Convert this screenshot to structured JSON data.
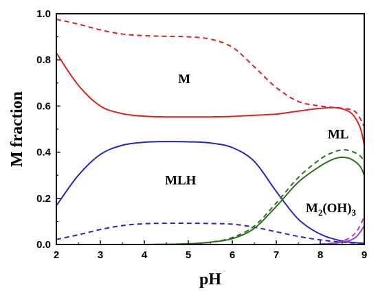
{
  "chart_data": {
    "type": "line",
    "xlabel": "pH",
    "ylabel": "M fraction",
    "xlim": [
      2,
      9
    ],
    "ylim": [
      0,
      1.0
    ],
    "xticks": [
      "2",
      "3",
      "4",
      "5",
      "6",
      "7",
      "8",
      "9"
    ],
    "yticks": [
      "0.0",
      "0.2",
      "0.4",
      "0.6",
      "0.8",
      "1.0"
    ],
    "grid": false,
    "legend": "none",
    "annotations": [
      {
        "text": "M",
        "x": 4.77,
        "y": 0.7
      },
      {
        "text": "MLH",
        "x": 4.47,
        "y": 0.26
      },
      {
        "text": "ML",
        "x": 8.17,
        "y": 0.46
      },
      {
        "main": "M",
        "sub": "2",
        "rest": "(OH)",
        "sub2": "3",
        "x": 7.67,
        "y": 0.14
      }
    ],
    "colors": {
      "M": "#e02020",
      "MLH": "#2424c8",
      "ML": "#2f6e1e",
      "M2OH3": "#a040d0"
    },
    "series": [
      {
        "key": "M_solid",
        "style": "solid",
        "color": "#e02020",
        "x": [
          2.0,
          2.5,
          3.0,
          3.5,
          4.0,
          4.5,
          5.0,
          5.5,
          6.0,
          6.5,
          7.0,
          7.5,
          8.0,
          8.4,
          8.7,
          8.9,
          9.0
        ],
        "y": [
          0.83,
          0.69,
          0.6,
          0.567,
          0.556,
          0.553,
          0.553,
          0.553,
          0.555,
          0.56,
          0.565,
          0.578,
          0.59,
          0.592,
          0.57,
          0.51,
          0.43
        ]
      },
      {
        "key": "M_dashed",
        "style": "dashed",
        "color": "#e02020",
        "x": [
          2.0,
          2.5,
          3.0,
          3.5,
          4.0,
          4.5,
          5.0,
          5.5,
          6.0,
          6.5,
          7.0,
          7.5,
          8.0,
          8.5,
          8.8,
          9.0
        ],
        "y": [
          0.976,
          0.955,
          0.93,
          0.912,
          0.905,
          0.902,
          0.9,
          0.89,
          0.855,
          0.77,
          0.68,
          0.62,
          0.6,
          0.59,
          0.575,
          0.51
        ]
      },
      {
        "key": "MLH_solid",
        "style": "solid",
        "color": "#2424c8",
        "x": [
          2.0,
          2.5,
          3.0,
          3.5,
          4.0,
          4.5,
          5.0,
          5.5,
          6.0,
          6.5,
          7.0,
          7.5,
          8.0,
          8.5,
          9.0
        ],
        "y": [
          0.168,
          0.3,
          0.39,
          0.43,
          0.443,
          0.446,
          0.445,
          0.44,
          0.42,
          0.36,
          0.23,
          0.11,
          0.045,
          0.015,
          0.005
        ]
      },
      {
        "key": "MLH_dashed",
        "style": "dashed",
        "color": "#2424c8",
        "x": [
          2.0,
          2.5,
          3.0,
          3.5,
          4.0,
          4.5,
          5.0,
          5.5,
          6.0,
          6.5,
          7.0,
          7.5,
          8.0,
          8.5,
          9.0
        ],
        "y": [
          0.022,
          0.042,
          0.065,
          0.082,
          0.09,
          0.092,
          0.092,
          0.091,
          0.088,
          0.075,
          0.055,
          0.035,
          0.02,
          0.01,
          0.004
        ]
      },
      {
        "key": "ML_solid",
        "style": "solid",
        "color": "#2f6e1e",
        "x": [
          2.0,
          4.0,
          5.0,
          5.5,
          6.0,
          6.5,
          7.0,
          7.5,
          8.0,
          8.3,
          8.5,
          8.7,
          8.9,
          9.0
        ],
        "y": [
          0.0,
          0.0,
          0.003,
          0.01,
          0.025,
          0.07,
          0.165,
          0.27,
          0.34,
          0.37,
          0.378,
          0.37,
          0.34,
          0.3
        ]
      },
      {
        "key": "ML_dashed",
        "style": "dashed",
        "color": "#2f6e1e",
        "x": [
          2.0,
          4.0,
          5.0,
          5.5,
          6.0,
          6.5,
          7.0,
          7.5,
          8.0,
          8.3,
          8.5,
          8.7,
          8.9,
          9.0
        ],
        "y": [
          0.0,
          0.0,
          0.003,
          0.01,
          0.03,
          0.08,
          0.18,
          0.29,
          0.37,
          0.4,
          0.41,
          0.405,
          0.385,
          0.36
        ]
      },
      {
        "key": "M2OH3_solid",
        "style": "solid",
        "color": "#a040d0",
        "x": [
          2.0,
          7.0,
          8.0,
          8.5,
          8.8,
          9.0
        ],
        "y": [
          0.0,
          0.0,
          0.001,
          0.01,
          0.03,
          0.08
        ]
      },
      {
        "key": "M2OH3_dashed",
        "style": "dashed",
        "color": "#a040d0",
        "x": [
          2.0,
          7.0,
          8.0,
          8.5,
          8.8,
          9.0
        ],
        "y": [
          0.0,
          0.0,
          0.002,
          0.015,
          0.05,
          0.12
        ]
      }
    ]
  }
}
